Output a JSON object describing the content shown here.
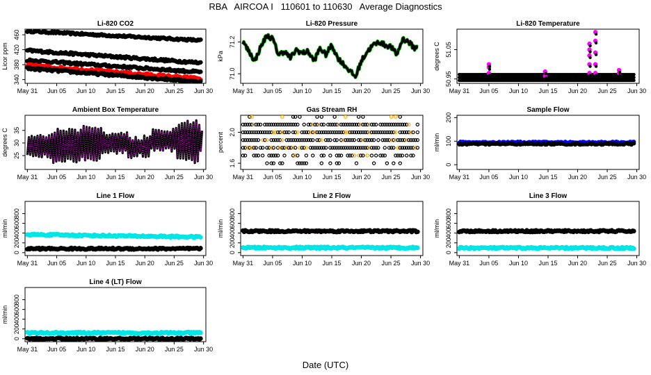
{
  "figure": {
    "title": "RBA   AIRCOA I   110601 to 110630   Average Diagnostics",
    "xlabel": "Date (UTC)"
  },
  "colors": {
    "black": "#000000",
    "red": "#ff0000",
    "green": "#00cc00",
    "magenta": "#ff00ff",
    "orange": "#ffaa00",
    "blue": "#0000ff",
    "cyan": "#00e5e5"
  },
  "chart_data": [
    {
      "type": "scatter",
      "title": "Li-820 CO2",
      "ylabel": "Licor ppm",
      "x_ticks": [
        "May 31",
        "Jun 05",
        "Jun 10",
        "Jun 15",
        "Jun 20",
        "Jun 25",
        "Jun 30"
      ],
      "y_ticks": [
        "340",
        "380",
        "420",
        "460"
      ],
      "ylim": [
        330,
        475
      ],
      "series": [
        {
          "color": "#000000",
          "x": [
            1,
            30.5
          ],
          "y": [
            470,
            445
          ]
        },
        {
          "color": "#000000",
          "x": [
            1,
            30.5
          ],
          "y": [
            418,
            385
          ]
        },
        {
          "color": "#000000",
          "x": [
            1,
            30.5
          ],
          "y": [
            392,
            360
          ]
        },
        {
          "color": "#ff0000",
          "x": [
            1,
            30.5
          ],
          "y": [
            378,
            342
          ]
        },
        {
          "color": "#000000",
          "x": [
            1,
            30.5
          ],
          "y": [
            370,
            334
          ]
        }
      ]
    },
    {
      "type": "line",
      "title": "Li-820 Pressure",
      "ylabel": "kPa",
      "x_ticks": [
        "May 31",
        "Jun 05",
        "Jun 10",
        "Jun 15",
        "Jun 20",
        "Jun 25",
        "Jun 30"
      ],
      "y_ticks": [
        "71.0",
        "71.2"
      ],
      "ylim": [
        70.94,
        71.28
      ],
      "series": [
        {
          "color": "#000000",
          "x": [
            1,
            2,
            3,
            4,
            5,
            6,
            7,
            8,
            9,
            10,
            11,
            12,
            13,
            14,
            15,
            16,
            17,
            18,
            19,
            20,
            21,
            22,
            23,
            24,
            25,
            26,
            27,
            28,
            29,
            30,
            30.5
          ],
          "y": [
            71.2,
            71.14,
            71.08,
            71.17,
            71.24,
            71.22,
            71.12,
            71.14,
            71.1,
            71.15,
            71.13,
            71.14,
            71.08,
            71.16,
            71.12,
            71.18,
            71.1,
            71.06,
            71.02,
            70.98,
            71.08,
            71.14,
            71.18,
            71.2,
            71.18,
            71.17,
            71.12,
            71.22,
            71.2,
            71.16,
            71.18
          ]
        }
      ]
    },
    {
      "type": "scatter",
      "title": "Li-820 Temperature",
      "ylabel": "degrees C",
      "x_ticks": [
        "May 31",
        "Jun 05",
        "Jun 10",
        "Jun 15",
        "Jun 20",
        "Jun 25",
        "Jun 30"
      ],
      "y_ticks": [
        "50.95",
        "51.05"
      ],
      "ylim": [
        50.935,
        51.12
      ],
      "series": [
        {
          "color": "#000000",
          "baseline": [
            50.945,
            50.955,
            50.965
          ]
        },
        {
          "color": "#ff00ff",
          "spikes": [
            {
              "x": 6,
              "y": [
                50.97,
                50.99,
                51.0
              ]
            },
            {
              "x": 15.5,
              "y": [
                50.96,
                50.975
              ]
            },
            {
              "x": 23,
              "y": [
                50.97,
                51.0,
                51.03,
                51.05,
                51.07
              ]
            },
            {
              "x": 24,
              "y": [
                50.97,
                51.0,
                51.04,
                51.08,
                51.11
              ]
            },
            {
              "x": 28,
              "y": [
                50.97,
                50.98
              ]
            }
          ]
        }
      ]
    },
    {
      "type": "line",
      "title": "Ambient Box Temperature",
      "ylabel": "degrees C",
      "x_ticks": [
        "May 31",
        "Jun 05",
        "Jun 10",
        "Jun 15",
        "Jun 20",
        "Jun 25",
        "Jun 30"
      ],
      "y_ticks": [
        "25",
        "30",
        "35"
      ],
      "ylim": [
        19.5,
        41
      ],
      "series": [
        {
          "color": "#000000",
          "x_range": [
            1,
            30.5
          ],
          "min": [
            24,
            22,
            23,
            25,
            24,
            26,
            22,
            25
          ],
          "max": [
            34,
            36,
            37,
            35,
            33,
            36,
            39,
            35
          ]
        },
        {
          "color": "#ff00ff",
          "note": ""
        }
      ]
    },
    {
      "type": "scatter",
      "title": "Gas Stream RH",
      "ylabel": "percent",
      "x_ticks": [
        "May 31",
        "Jun 05",
        "Jun 10",
        "Jun 15",
        "Jun 20",
        "Jun 25",
        "Jun 30"
      ],
      "y_ticks": [
        "1.6",
        "2.0"
      ],
      "ylim": [
        1.52,
        2.22
      ],
      "series": [
        {
          "color": "#000000",
          "levels": [
            1.6,
            1.7,
            1.8,
            1.9,
            2.0,
            2.1,
            2.2
          ]
        },
        {
          "color": "#ffaa00",
          "levels": [
            1.6,
            1.7,
            1.8,
            1.9,
            2.0,
            2.1,
            2.2
          ]
        }
      ]
    },
    {
      "type": "scatter",
      "title": "Sample Flow",
      "ylabel": "ml/min",
      "x_ticks": [
        "May 31",
        "Jun 05",
        "Jun 10",
        "Jun 15",
        "Jun 20",
        "Jun 25",
        "Jun 30"
      ],
      "y_ticks": [
        "0",
        "100",
        "200"
      ],
      "ylim": [
        -20,
        210
      ],
      "series": [
        {
          "color": "#0000ff",
          "x": [
            1,
            30.5
          ],
          "y": [
            95,
            95
          ]
        },
        {
          "color": "#000000",
          "x": [
            1,
            30.5
          ],
          "y": [
            88,
            88
          ]
        }
      ]
    },
    {
      "type": "scatter",
      "title": "Line 1 Flow",
      "ylabel": "ml/min",
      "x_ticks": [
        "May 31",
        "Jun 05",
        "Jun 10",
        "Jun 15",
        "Jun 20",
        "Jun 25",
        "Jun 30"
      ],
      "y_ticks": [
        "0",
        "200",
        "400",
        "600",
        "800"
      ],
      "ylim": [
        -60,
        1050
      ],
      "series": [
        {
          "color": "#00e5e5",
          "x": [
            1,
            30.5
          ],
          "y": [
            370,
            320
          ]
        },
        {
          "color": "#000000",
          "x": [
            1,
            30.5
          ],
          "y": [
            80,
            80
          ]
        }
      ]
    },
    {
      "type": "scatter",
      "title": "Line 2 Flow",
      "ylabel": "ml/min",
      "x_ticks": [
        "May 31",
        "Jun 05",
        "Jun 10",
        "Jun 15",
        "Jun 20",
        "Jun 25",
        "Jun 30"
      ],
      "y_ticks": [
        "0",
        "200",
        "400",
        "600",
        "800"
      ],
      "ylim": [
        -60,
        1050
      ],
      "series": [
        {
          "color": "#000000",
          "x": [
            1,
            30.5
          ],
          "y": [
            440,
            440
          ]
        },
        {
          "color": "#00e5e5",
          "x": [
            1,
            30.5
          ],
          "y": [
            100,
            100
          ]
        }
      ]
    },
    {
      "type": "scatter",
      "title": "Line 3 Flow",
      "ylabel": "ml/min",
      "x_ticks": [
        "May 31",
        "Jun 05",
        "Jun 10",
        "Jun 15",
        "Jun 20",
        "Jun 25",
        "Jun 30"
      ],
      "y_ticks": [
        "0",
        "200",
        "400",
        "600",
        "800"
      ],
      "ylim": [
        -60,
        1050
      ],
      "series": [
        {
          "color": "#000000",
          "x": [
            1,
            30.5
          ],
          "y": [
            440,
            440
          ]
        },
        {
          "color": "#00e5e5",
          "x": [
            1,
            30.5
          ],
          "y": [
            95,
            95
          ]
        }
      ]
    },
    {
      "type": "scatter",
      "title": "Line 4 (LT) Flow",
      "ylabel": "ml/min",
      "x_ticks": [
        "May 31",
        "Jun 05",
        "Jun 10",
        "Jun 15",
        "Jun 20",
        "Jun 25",
        "Jun 30"
      ],
      "y_ticks": [
        "0",
        "200",
        "400",
        "600",
        "800"
      ],
      "ylim": [
        -60,
        1050
      ],
      "series": [
        {
          "color": "#00e5e5",
          "x": [
            1,
            30.5
          ],
          "y": [
            120,
            120
          ]
        },
        {
          "color": "#000000",
          "x": [
            1,
            30.5
          ],
          "y": [
            0,
            0
          ]
        }
      ]
    }
  ]
}
